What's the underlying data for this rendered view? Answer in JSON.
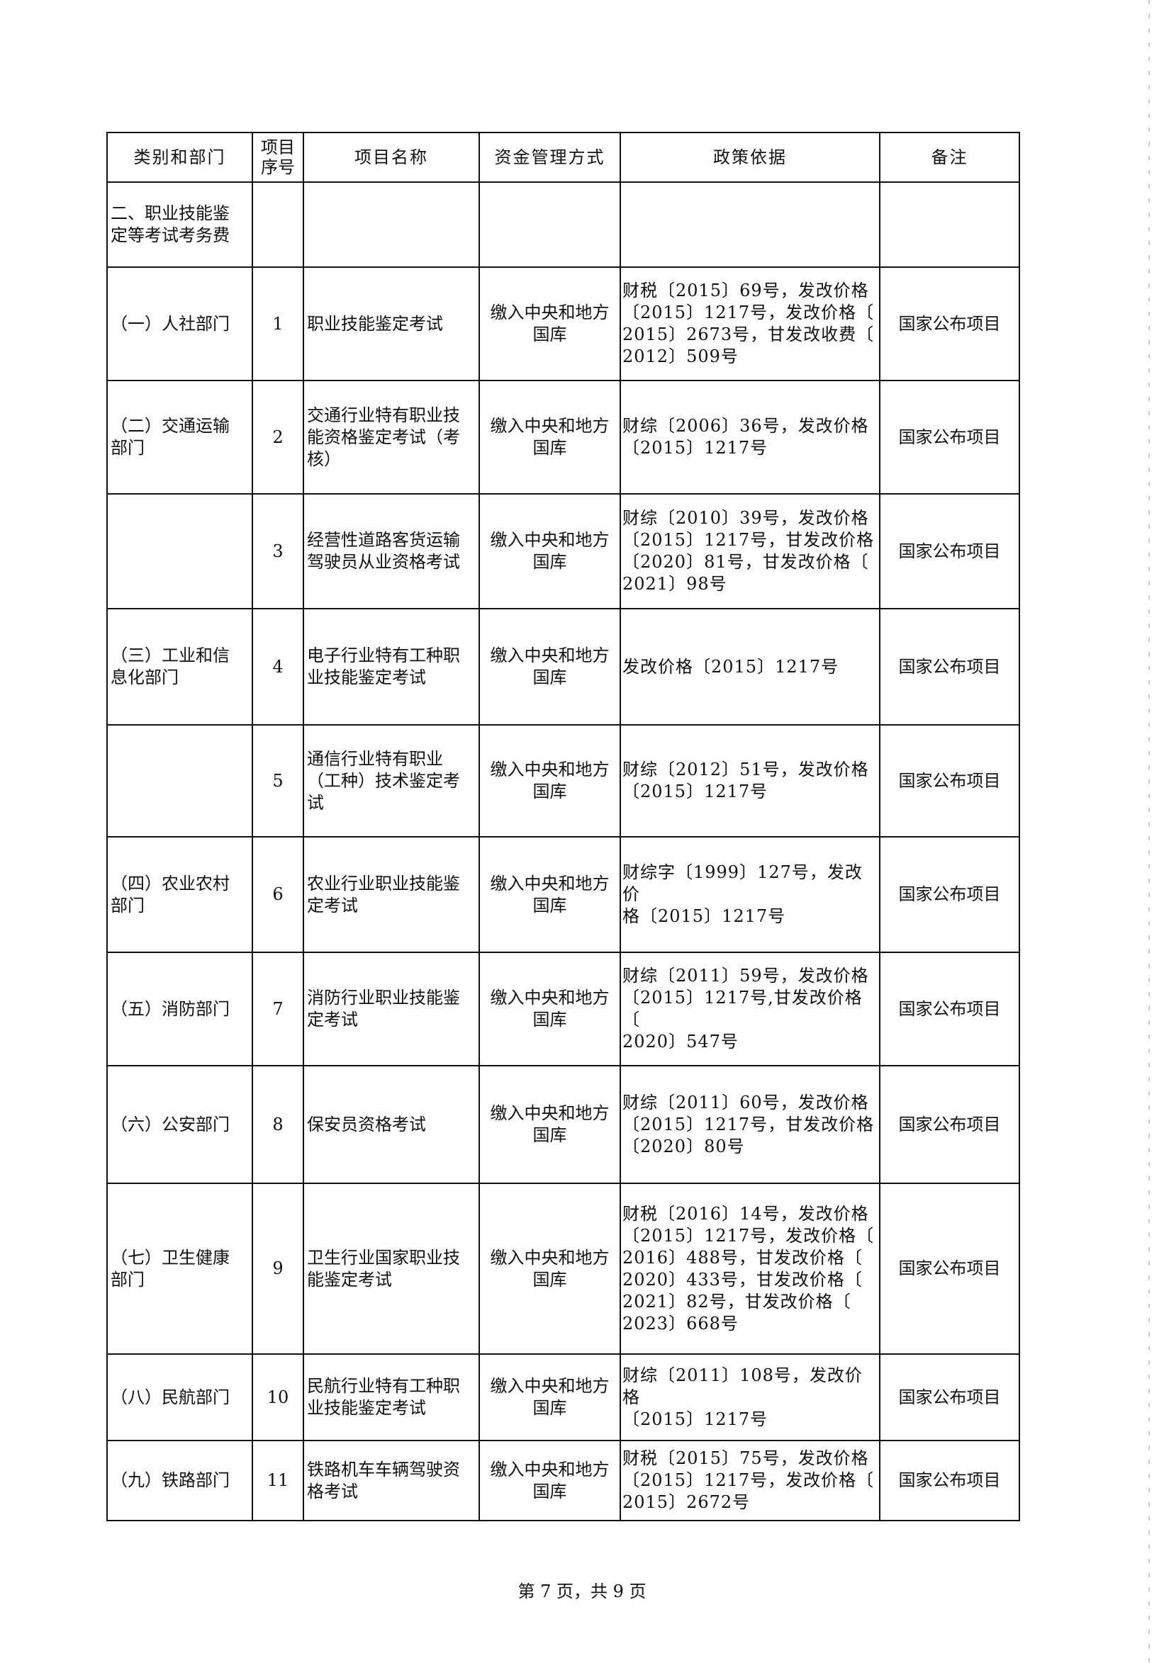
{
  "table": {
    "headers": [
      "类别和部门",
      "项目\n序号",
      "项目名称",
      "资金管理方式",
      "政策依据",
      "备注"
    ],
    "section": "二、职业技能鉴\n定等考试考务费",
    "rows": [
      {
        "dept": "（一）人社部门",
        "no": "1",
        "name": "职业技能鉴定考试",
        "fund": "缴入中央和地方\n国库",
        "policy": "财税〔2015〕69号，发改价格\n〔2015〕1217号，发改价格〔\n2015〕2673号，甘发改收费〔\n2012〕509号",
        "note": "国家公布项目"
      },
      {
        "dept": "（二）交通运输\n部门",
        "no": "2",
        "name": "交通行业特有职业技\n能资格鉴定考试（考\n核）",
        "fund": "缴入中央和地方\n国库",
        "policy": "财综〔2006〕36号，发改价格\n〔2015〕1217号",
        "note": "国家公布项目"
      },
      {
        "dept": "",
        "no": "3",
        "name": "经营性道路客货运输\n驾驶员从业资格考试",
        "fund": "缴入中央和地方\n国库",
        "policy": "财综〔2010〕39号，发改价格\n〔2015〕1217号，甘发改价格\n〔2020〕81号，甘发改价格〔\n2021〕98号",
        "note": "国家公布项目"
      },
      {
        "dept": "（三）工业和信\n息化部门",
        "no": "4",
        "name": "电子行业特有工种职\n业技能鉴定考试",
        "fund": "缴入中央和地方\n国库",
        "policy": "发改价格〔2015〕1217号",
        "note": "国家公布项目"
      },
      {
        "dept": "",
        "no": "5",
        "name": "通信行业特有职业\n（工种）技术鉴定考\n试",
        "fund": "缴入中央和地方\n国库",
        "policy": "财综〔2012〕51号，发改价格\n〔2015〕1217号",
        "note": "国家公布项目"
      },
      {
        "dept": "（四）农业农村\n部门",
        "no": "6",
        "name": "农业行业职业技能鉴\n定考试",
        "fund": "缴入中央和地方\n国库",
        "policy": "财综字〔1999〕127号，发改价\n格〔2015〕1217号",
        "note": "国家公布项目"
      },
      {
        "dept": "（五）消防部门",
        "no": "7",
        "name": "消防行业职业技能鉴\n定考试",
        "fund": "缴入中央和地方\n国库",
        "policy": "财综〔2011〕59号，发改价格\n〔2015〕1217号,甘发改价格〔\n2020〕547号",
        "note": "国家公布项目"
      },
      {
        "dept": "（六）公安部门",
        "no": "8",
        "name": "保安员资格考试",
        "fund": "缴入中央和地方\n国库",
        "policy": "财综〔2011〕60号，发改价格\n〔2015〕1217号，甘发改价格\n〔2020〕80号",
        "note": "国家公布项目"
      },
      {
        "dept": "（七）卫生健康\n部门",
        "no": "9",
        "name": "卫生行业国家职业技\n能鉴定考试",
        "fund": "缴入中央和地方\n国库",
        "policy": "财税〔2016〕14号，发改价格\n〔2015〕1217号，发改价格〔\n2016〕488号，甘发改价格〔\n2020〕433号，甘发改价格〔\n2021〕82号，甘发改价格〔\n2023〕668号",
        "note": "国家公布项目"
      },
      {
        "dept": "（八）民航部门",
        "no": "10",
        "name": "民航行业特有工种职\n业技能鉴定考试",
        "fund": "缴入中央和地方\n国库",
        "policy": "财综〔2011〕108号，发改价格\n〔2015〕1217号",
        "note": "国家公布项目"
      },
      {
        "dept": "（九）铁路部门",
        "no": "11",
        "name": "铁路机车车辆驾驶资\n格考试",
        "fund": "缴入中央和地方\n国库",
        "policy": "财税〔2015〕75号，发改价格\n〔2015〕1217号，发改价格〔\n2015〕2672号",
        "note": "国家公布项目"
      }
    ]
  },
  "footer": "第 7 页，共 9 页"
}
